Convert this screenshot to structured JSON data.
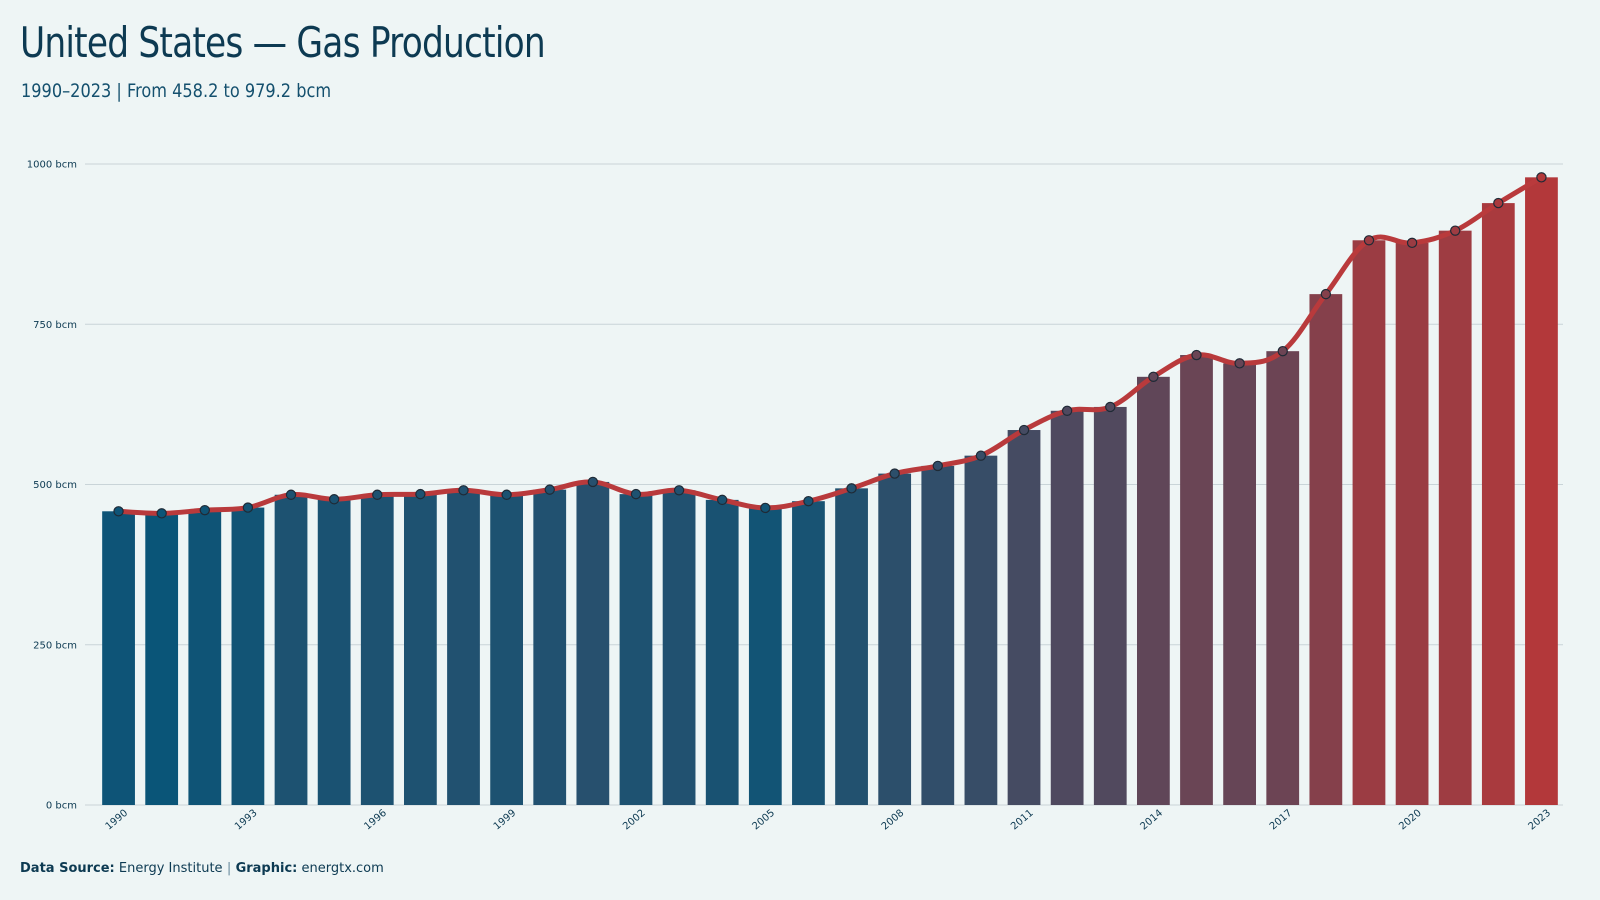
{
  "header": {
    "title": "United States — Gas Production",
    "subtitle": "1990–2023 | From 458.2 to 979.2 bcm"
  },
  "footer": {
    "source_label": "Data Source:",
    "source_value": "Energy Institute",
    "separator": "|",
    "graphic_label": "Graphic:",
    "graphic_value": "energtx.com"
  },
  "colors": {
    "background": "#eef5f5",
    "bar_low": "#0a5578",
    "bar_high": "#b3383a",
    "line": "#b93a3c",
    "grid": "#c9d4d8",
    "text": "#0d3a52"
  },
  "chart_data": {
    "type": "bar",
    "overlay": "line",
    "title": "United States — Gas Production",
    "subtitle": "1990–2023 | From 458.2 to 979.2 bcm",
    "unit": "bcm",
    "ylim": [
      0,
      1000
    ],
    "yticks": [
      0,
      250,
      500,
      750,
      1000
    ],
    "ytick_labels": [
      "0 bcm",
      "250 bcm",
      "500 bcm",
      "750 bcm",
      "1000 bcm"
    ],
    "xtick_labels": [
      "1990",
      "1993",
      "1996",
      "1999",
      "2002",
      "2005",
      "2008",
      "2011",
      "2014",
      "2017",
      "2020",
      "2023"
    ],
    "grid": true,
    "categories": [
      "1990",
      "1991",
      "1992",
      "1993",
      "1994",
      "1995",
      "1996",
      "1997",
      "1998",
      "1999",
      "2000",
      "2001",
      "2002",
      "2003",
      "2004",
      "2005",
      "2006",
      "2007",
      "2008",
      "2009",
      "2010",
      "2011",
      "2012",
      "2013",
      "2014",
      "2015",
      "2016",
      "2017",
      "2018",
      "2019",
      "2020",
      "2021",
      "2022",
      "2023"
    ],
    "values": [
      458.2,
      455,
      460,
      464,
      484,
      477,
      484,
      485,
      491,
      484,
      492,
      504,
      485,
      491,
      476,
      463.5,
      474,
      494,
      517,
      529,
      545,
      585,
      615,
      621,
      668,
      702,
      689,
      708,
      797,
      881,
      877,
      896,
      939,
      979.2
    ]
  }
}
